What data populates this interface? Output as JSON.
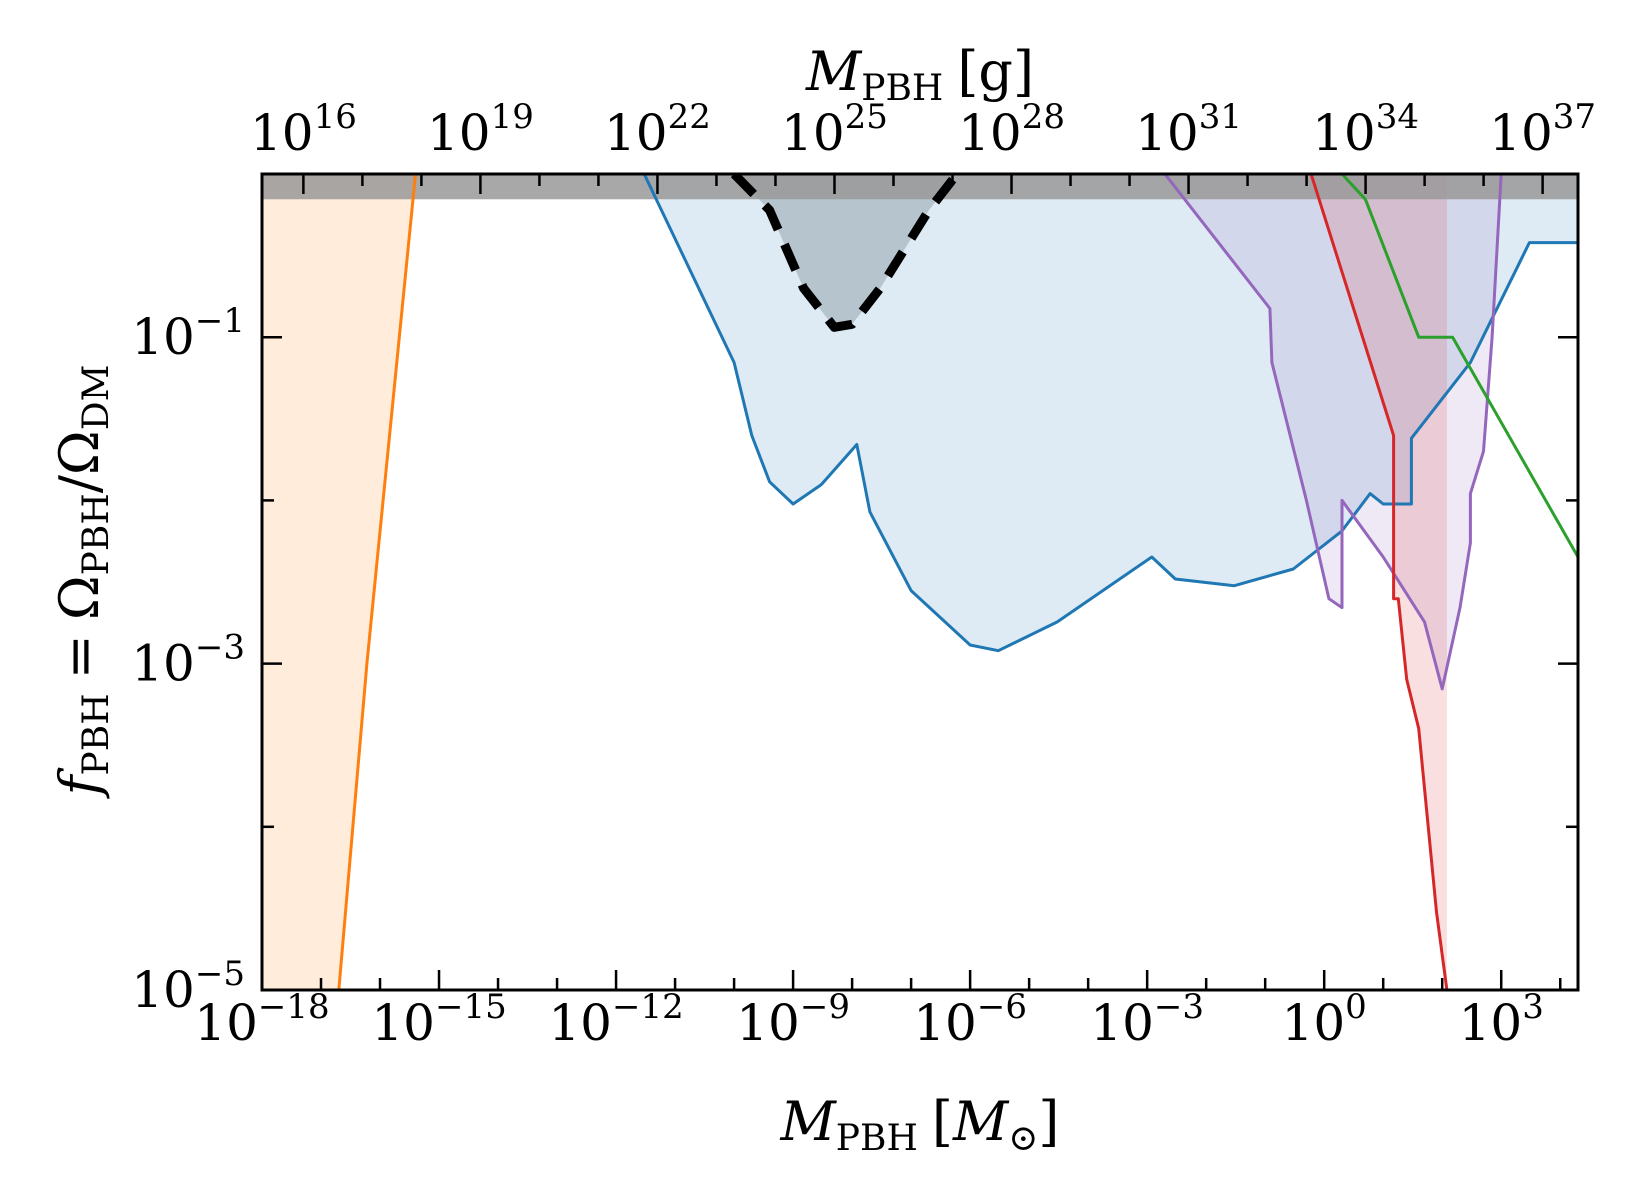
{
  "chart_data": {
    "type": "area",
    "xlabel": "M_PBH [M_⊙]",
    "xlabel_parts": {
      "main": "M",
      "sub": "PBH",
      "unit_open": "[",
      "unit_main": "M",
      "unit_sub": "⊙",
      "unit_close": "]"
    },
    "top_xlabel": "M_PBH [g]",
    "top_xlabel_parts": {
      "main": "M",
      "sub": "PBH",
      "unit": "[g]"
    },
    "ylabel": "f_PBH = Ω_PBH/Ω_DM",
    "ylabel_parts": {
      "f": "f",
      "f_sub": "PBH",
      "eq": "=",
      "omega": "Ω",
      "num_sub": "PBH",
      "slash": "/",
      "den_sub": "DM"
    },
    "x_scale": "log",
    "y_scale": "log",
    "xlim": [
      1e-18,
      20000
    ],
    "ylim": [
      1e-05,
      1
    ],
    "grid": false,
    "legend": "none",
    "x_ticks": [
      {
        "value": 1e-18,
        "base": "10",
        "exp": "−18"
      },
      {
        "value": 1e-15,
        "base": "10",
        "exp": "−15"
      },
      {
        "value": 1e-12,
        "base": "10",
        "exp": "−12"
      },
      {
        "value": 1e-09,
        "base": "10",
        "exp": "−9"
      },
      {
        "value": 1e-06,
        "base": "10",
        "exp": "−6"
      },
      {
        "value": 0.001,
        "base": "10",
        "exp": "−3"
      },
      {
        "value": 1,
        "base": "10",
        "exp": "0"
      },
      {
        "value": 1000,
        "base": "10",
        "exp": "3"
      }
    ],
    "top_ticks": [
      {
        "value_g": 1e+16,
        "base": "10",
        "exp": "16"
      },
      {
        "value_g": 1e+19,
        "base": "10",
        "exp": "19"
      },
      {
        "value_g": 1e+22,
        "base": "10",
        "exp": "22"
      },
      {
        "value_g": 1e+25,
        "base": "10",
        "exp": "25"
      },
      {
        "value_g": 1e+28,
        "base": "10",
        "exp": "28"
      },
      {
        "value_g": 1e+31,
        "base": "10",
        "exp": "31"
      },
      {
        "value_g": 1e+34,
        "base": "10",
        "exp": "34"
      },
      {
        "value_g": 1e+37,
        "base": "10",
        "exp": "37"
      }
    ],
    "solar_mass_g": 1.989e+33,
    "y_ticks": [
      {
        "value": 0.1,
        "base": "10",
        "exp": "−1"
      },
      {
        "value": 0.001,
        "base": "10",
        "exp": "−3"
      },
      {
        "value": 1e-05,
        "base": "10",
        "exp": "−5"
      }
    ],
    "bands": [
      {
        "name": "",
        "color": "#999999",
        "opacity": 0.85,
        "y_from": 0.7,
        "y_to": 1
      }
    ],
    "series": [
      {
        "color": "#ff7f0e",
        "fill_opacity": 0.15,
        "fill": "left",
        "dashed": false,
        "points": [
          [
            2e-17,
            1e-05
          ],
          [
            6e-17,
            0.001
          ],
          [
            4e-16,
            1
          ]
        ]
      },
      {
        "color": "#1f77b4",
        "fill_opacity": 0.15,
        "fill": "up",
        "dashed": false,
        "points": [
          [
            3e-12,
            1
          ],
          [
            1e-10,
            0.07
          ],
          [
            2e-10,
            0.025
          ],
          [
            4e-10,
            0.013
          ],
          [
            1e-09,
            0.0095
          ],
          [
            3e-09,
            0.0125
          ],
          [
            1.2e-08,
            0.022
          ],
          [
            2e-08,
            0.0085
          ],
          [
            1e-07,
            0.0028
          ],
          [
            1e-06,
            0.0013
          ],
          [
            3e-06,
            0.0012
          ],
          [
            3e-05,
            0.0018
          ],
          [
            0.0012,
            0.0045
          ],
          [
            0.003,
            0.0033
          ],
          [
            0.03,
            0.003
          ],
          [
            0.3,
            0.0038
          ],
          [
            2,
            0.0065
          ],
          [
            6,
            0.011
          ],
          [
            10,
            0.0095
          ],
          [
            30,
            0.0095
          ],
          [
            30,
            0.024
          ],
          [
            300,
            0.07
          ],
          [
            3000,
            0.38
          ],
          [
            20000,
            0.38
          ]
        ]
      },
      {
        "color": "#9467bd",
        "fill_opacity": 0.15,
        "fill": "up",
        "dashed": false,
        "points": [
          [
            0.002,
            1
          ],
          [
            0.12,
            0.15
          ],
          [
            0.13,
            0.07
          ],
          [
            0.5,
            0.01
          ],
          [
            1.2,
            0.0025
          ],
          [
            2,
            0.0022
          ],
          [
            2,
            0.01
          ],
          [
            10,
            0.0045
          ],
          [
            50,
            0.0018
          ],
          [
            100,
            0.0007
          ],
          [
            200,
            0.0022
          ],
          [
            300,
            0.0055
          ],
          [
            300,
            0.011
          ],
          [
            500,
            0.02
          ],
          [
            700,
            0.1
          ],
          [
            1000,
            1
          ]
        ]
      },
      {
        "color": "#d62728",
        "fill_opacity": 0.15,
        "fill": "up",
        "dashed": false,
        "points": [
          [
            0.6,
            1
          ],
          [
            15,
            0.025
          ],
          [
            15,
            0.0025
          ],
          [
            18,
            0.0025
          ],
          [
            25,
            0.0008
          ],
          [
            40,
            0.0004
          ],
          [
            80,
            3e-05
          ],
          [
            120,
            1e-05
          ]
        ]
      },
      {
        "color": "#2ca02c",
        "fill_opacity": 0.0,
        "fill": "none",
        "dashed": false,
        "points": [
          [
            2,
            1
          ],
          [
            5,
            0.7
          ],
          [
            40,
            0.1
          ],
          [
            150,
            0.1
          ],
          [
            20000,
            0.0045
          ]
        ]
      },
      {
        "color": "#000000",
        "fill_opacity": 0.22,
        "fill": "dark",
        "dashed": true,
        "points": [
          [
            1e-10,
            1
          ],
          [
            4e-10,
            0.6
          ],
          [
            1.5e-09,
            0.2
          ],
          [
            5e-09,
            0.115
          ],
          [
            1e-08,
            0.12
          ],
          [
            3e-08,
            0.2
          ],
          [
            2e-07,
            0.6
          ],
          [
            6e-07,
            1
          ]
        ]
      }
    ]
  }
}
